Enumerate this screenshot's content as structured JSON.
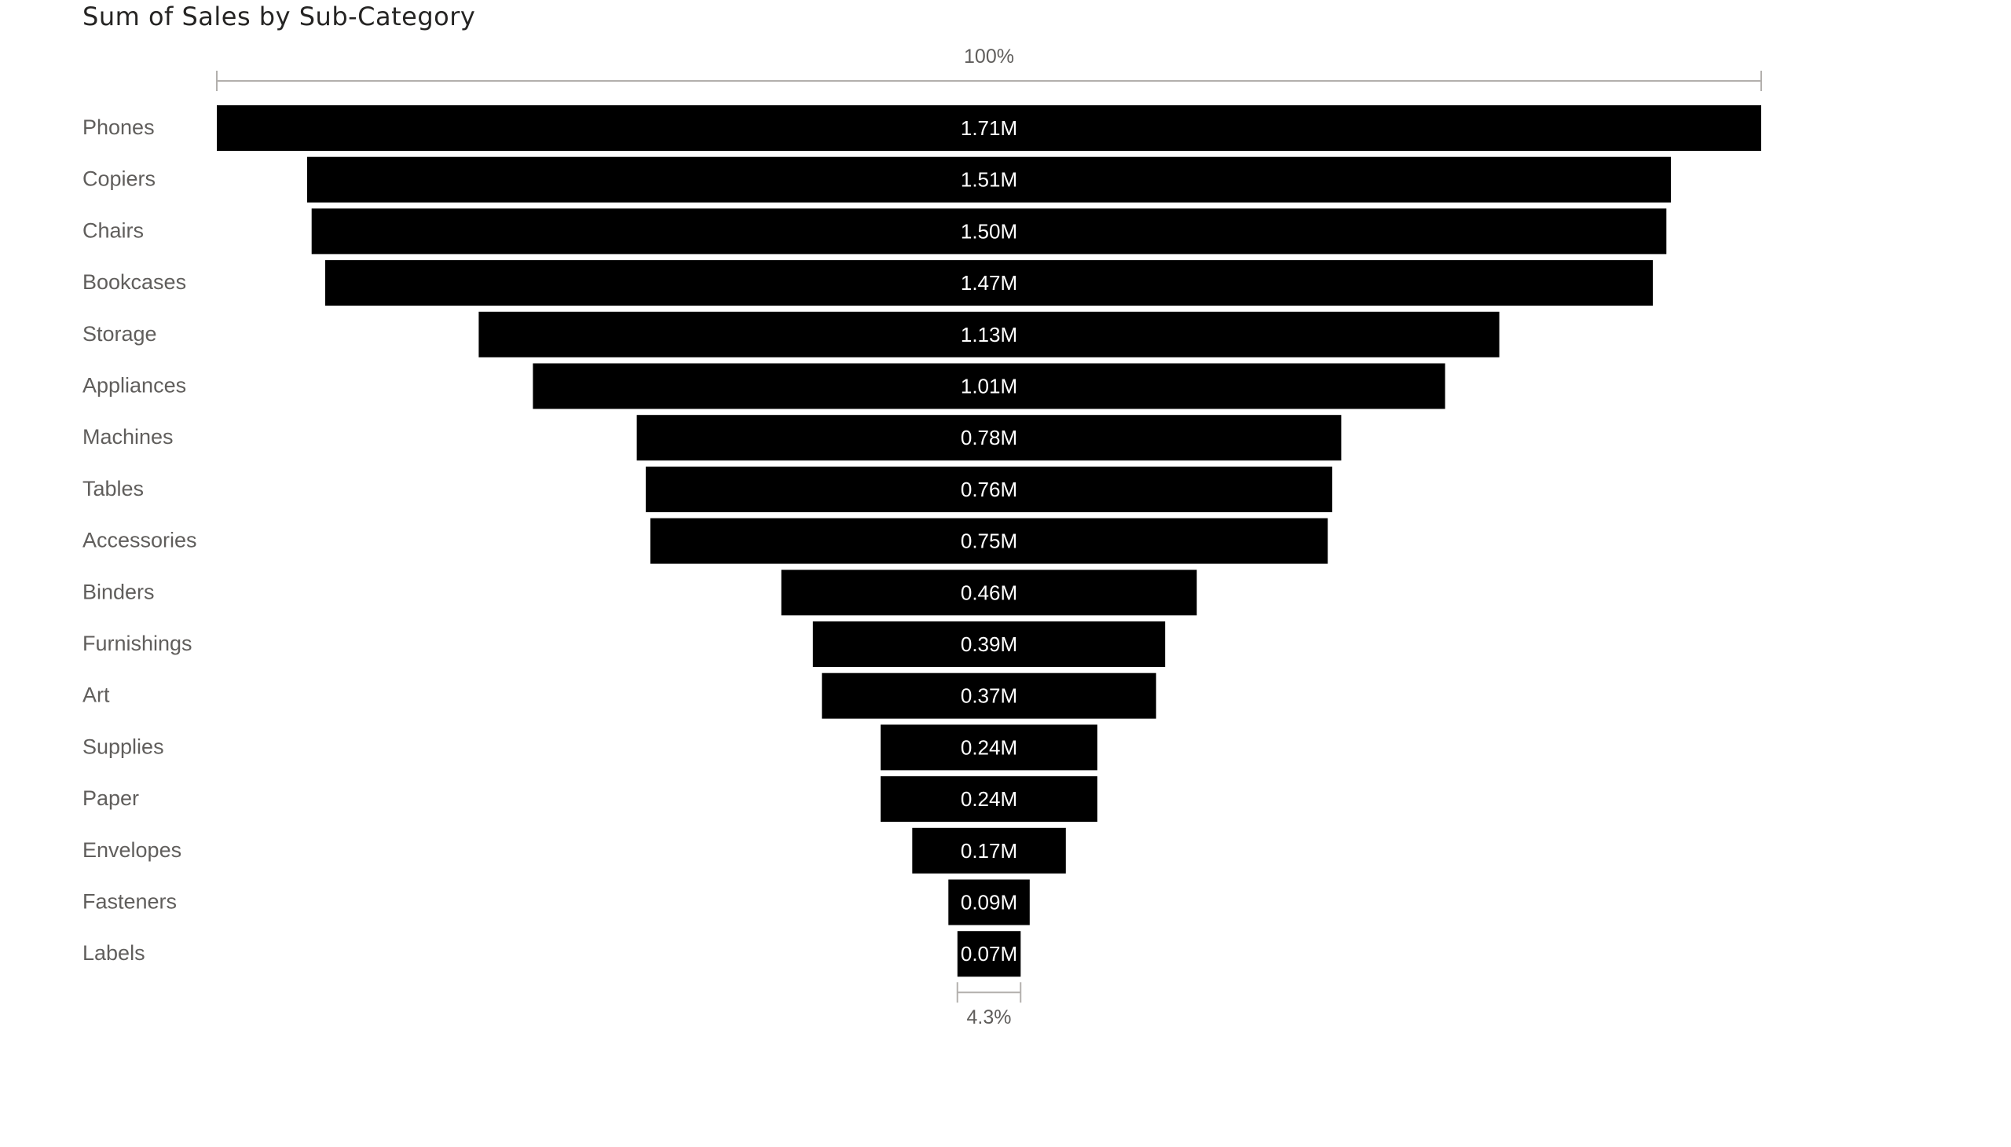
{
  "chart_data": {
    "type": "funnel",
    "title": "Sum of Sales by Sub-Category",
    "categories": [
      "Phones",
      "Copiers",
      "Chairs",
      "Bookcases",
      "Storage",
      "Appliances",
      "Machines",
      "Tables",
      "Accessories",
      "Binders",
      "Furnishings",
      "Art",
      "Supplies",
      "Paper",
      "Envelopes",
      "Fasteners",
      "Labels"
    ],
    "values": [
      1.71,
      1.51,
      1.5,
      1.47,
      1.13,
      1.01,
      0.78,
      0.76,
      0.75,
      0.46,
      0.39,
      0.37,
      0.24,
      0.24,
      0.17,
      0.09,
      0.07
    ],
    "value_labels": [
      "1.71M",
      "1.51M",
      "1.50M",
      "1.47M",
      "1.13M",
      "1.01M",
      "0.78M",
      "0.76M",
      "0.75M",
      "0.46M",
      "0.39M",
      "0.37M",
      "0.24M",
      "0.24M",
      "0.17M",
      "0.09M",
      "0.07M"
    ],
    "top_percent_label": "100%",
    "bottom_percent_label": "4.3%",
    "bar_color": "#000000"
  }
}
